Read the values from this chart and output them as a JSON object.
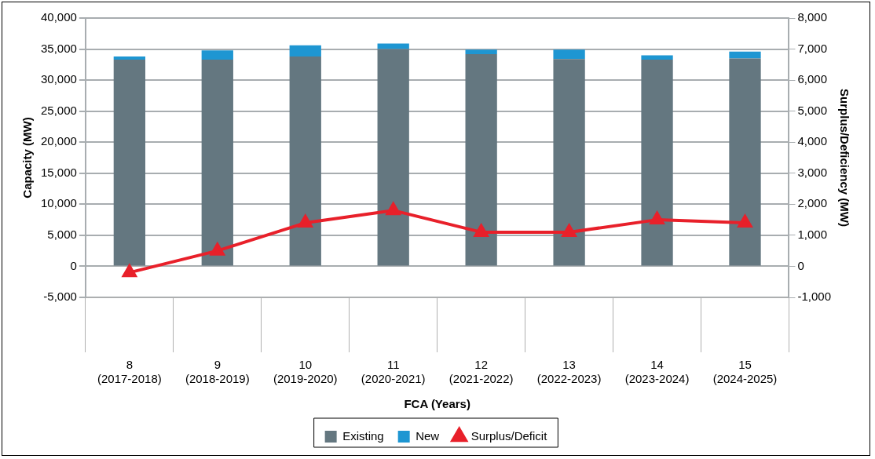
{
  "chart_data": {
    "type": "bar",
    "stacked": true,
    "xlabel": "FCA (Years)",
    "ylabel": "Capacity (MW)",
    "y2label": "Surplus/Deficiency (MW)",
    "categories": [
      "8\n(2017-2018)",
      "9\n(2018-2019)",
      "10\n(2019-2020)",
      "11\n(2020-2021)",
      "12\n(2021-2022)",
      "13\n(2022-2023)",
      "14\n(2023-2024)",
      "15\n(2024-2025)"
    ],
    "series": [
      {
        "name": "Existing",
        "color": "#647780",
        "values": [
          33300,
          33300,
          33800,
          35000,
          34200,
          33400,
          33300,
          33500
        ]
      },
      {
        "name": "New",
        "color": "#1e96d2",
        "values": [
          500,
          1500,
          1800,
          900,
          700,
          1500,
          700,
          1100
        ]
      },
      {
        "name": "Surplus/Deficit",
        "type": "line",
        "axis": "y2",
        "color": "#e8202a",
        "marker": "triangle",
        "values": [
          -200,
          500,
          1400,
          1800,
          1100,
          1100,
          1500,
          1400
        ]
      }
    ],
    "ylim": [
      -5000,
      40000
    ],
    "yticks": [
      {
        "value": -5000,
        "label": "-5,000"
      },
      0,
      {
        "value": 5000,
        "label": "5,000"
      },
      {
        "value": 10000,
        "label": "10,000"
      },
      {
        "value": 15000,
        "label": "15,000"
      },
      {
        "value": 20000,
        "label": "20,000"
      },
      {
        "value": 25000,
        "label": "25,000"
      },
      {
        "value": 30000,
        "label": "30,000"
      },
      {
        "value": 35000,
        "label": "35,000"
      },
      {
        "value": 40000,
        "label": "40,000"
      }
    ],
    "y2lim": [
      -1000,
      8000
    ],
    "y2ticks": [
      {
        "value": -1000,
        "label": "-1,000"
      },
      0,
      {
        "value": 1000,
        "label": "1,000"
      },
      {
        "value": 2000,
        "label": "2,000"
      },
      {
        "value": 3000,
        "label": "3,000"
      },
      {
        "value": 4000,
        "label": "4,000"
      },
      {
        "value": 5000,
        "label": "5,000"
      },
      {
        "value": 6000,
        "label": "6,000"
      },
      {
        "value": 7000,
        "label": "7,000"
      },
      {
        "value": 8000,
        "label": "8,000"
      }
    ],
    "grid": "y",
    "legend": "bottom"
  }
}
